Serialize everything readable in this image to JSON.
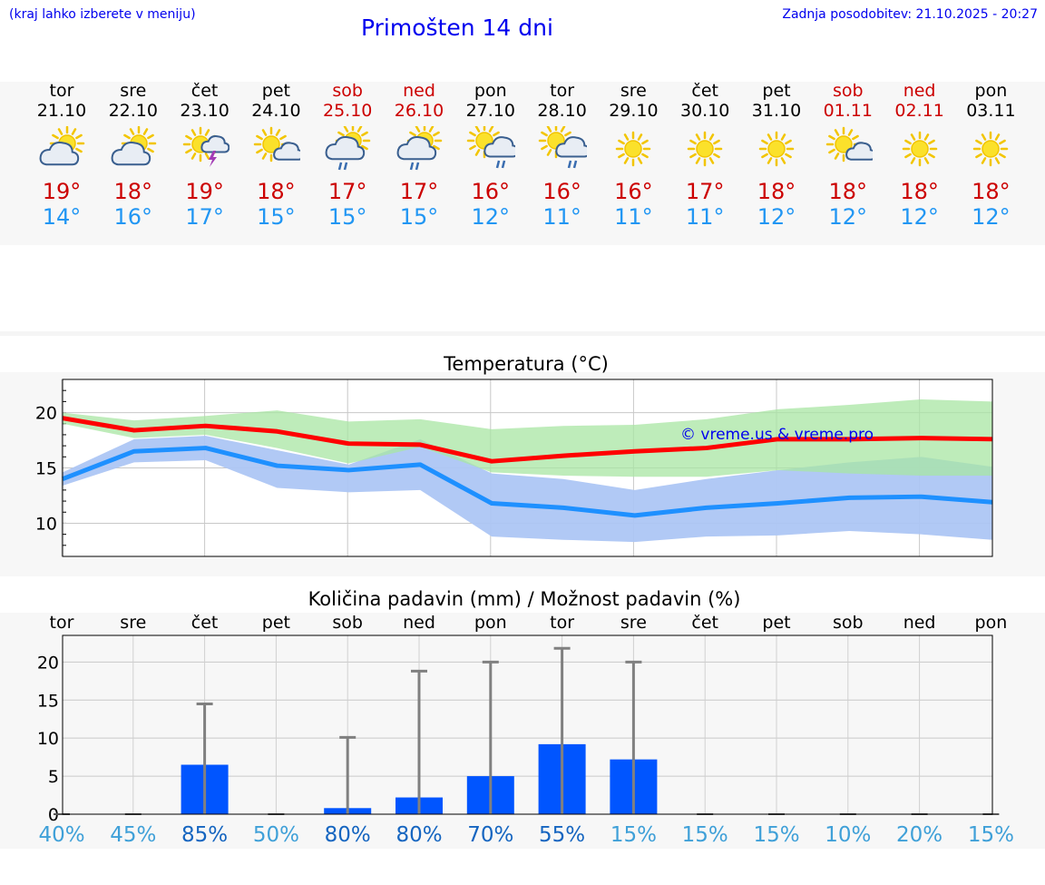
{
  "header": {
    "menu_hint": "(kraj lahko izberete v meniju)",
    "title": "Primošten 14 dni",
    "updated": "Zadnja posodobitev: 21.10.2025 - 20:27"
  },
  "colors": {
    "max_temp_line": "#ff0000",
    "min_temp_line": "#1e90ff",
    "max_band": "#a8e6a3",
    "min_band": "#adc6f4",
    "precip_bar": "#0055ff",
    "whisker": "#808080",
    "weekend_text": "#cc0000",
    "title_blue": "#0000ee"
  },
  "forecast": [
    {
      "day": "tor",
      "date": "21.10",
      "weekend": false,
      "icon": "partly-cloudy-icon",
      "max": "19°",
      "min": "14°"
    },
    {
      "day": "sre",
      "date": "22.10",
      "weekend": false,
      "icon": "partly-cloudy-icon",
      "max": "18°",
      "min": "16°"
    },
    {
      "day": "čet",
      "date": "23.10",
      "weekend": false,
      "icon": "sun-thunderstorm-icon",
      "max": "19°",
      "min": "17°"
    },
    {
      "day": "pet",
      "date": "24.10",
      "weekend": false,
      "icon": "sun-small-cloud-icon",
      "max": "18°",
      "min": "15°"
    },
    {
      "day": "sob",
      "date": "25.10",
      "weekend": true,
      "icon": "sun-cloud-rain-icon",
      "max": "17°",
      "min": "15°"
    },
    {
      "day": "ned",
      "date": "26.10",
      "weekend": true,
      "icon": "sun-cloud-rain-icon",
      "max": "17°",
      "min": "15°"
    },
    {
      "day": "pon",
      "date": "27.10",
      "weekend": false,
      "icon": "sun-cloud-light-rain-icon",
      "max": "16°",
      "min": "12°"
    },
    {
      "day": "tor",
      "date": "28.10",
      "weekend": false,
      "icon": "sun-cloud-light-rain-icon",
      "max": "16°",
      "min": "11°"
    },
    {
      "day": "sre",
      "date": "29.10",
      "weekend": false,
      "icon": "sun-icon",
      "max": "16°",
      "min": "11°"
    },
    {
      "day": "čet",
      "date": "30.10",
      "weekend": false,
      "icon": "sun-icon",
      "max": "17°",
      "min": "11°"
    },
    {
      "day": "pet",
      "date": "31.10",
      "weekend": false,
      "icon": "sun-icon",
      "max": "18°",
      "min": "12°"
    },
    {
      "day": "sob",
      "date": "01.11",
      "weekend": true,
      "icon": "sun-small-cloud-icon",
      "max": "18°",
      "min": "12°"
    },
    {
      "day": "ned",
      "date": "02.11",
      "weekend": true,
      "icon": "sun-icon",
      "max": "18°",
      "min": "12°"
    },
    {
      "day": "pon",
      "date": "03.11",
      "weekend": false,
      "icon": "sun-icon",
      "max": "18°",
      "min": "12°"
    }
  ],
  "chart_data": [
    {
      "type": "line",
      "title": "Temperatura (°C)",
      "watermark": "© vreme.us & vreme.pro",
      "ylim": [
        7,
        23
      ],
      "yticks": [
        10,
        15,
        20
      ],
      "grid": true,
      "series": [
        {
          "values": [
            19.5,
            18.4,
            18.8,
            18.3,
            17.2,
            17.1,
            15.6,
            16.1,
            16.5,
            16.8,
            17.6,
            17.6,
            17.7,
            17.6
          ],
          "band_low": [
            19.0,
            17.7,
            18.0,
            16.8,
            15.4,
            16.9,
            14.6,
            14.3,
            14.2,
            14.2,
            14.8,
            14.5,
            14.3,
            14.3
          ],
          "band_high": [
            20.0,
            19.3,
            19.7,
            20.2,
            19.2,
            19.4,
            18.5,
            18.8,
            18.9,
            19.4,
            20.3,
            20.7,
            21.2,
            21.0
          ]
        },
        {
          "values": [
            14.0,
            16.5,
            16.8,
            15.2,
            14.8,
            15.3,
            11.8,
            11.4,
            10.7,
            11.4,
            11.8,
            12.3,
            12.4,
            11.9
          ],
          "band_low": [
            13.4,
            15.5,
            15.7,
            13.2,
            12.8,
            13.0,
            8.8,
            8.5,
            8.3,
            8.8,
            8.9,
            9.3,
            9.0,
            8.5
          ],
          "band_high": [
            14.6,
            17.6,
            17.9,
            16.6,
            15.3,
            17.6,
            14.5,
            14.0,
            13.0,
            14.0,
            14.8,
            15.5,
            16.0,
            15.1
          ]
        }
      ]
    },
    {
      "type": "bar",
      "title": "Količina padavin (mm) / Možnost padavin (%)",
      "categories": [
        "tor",
        "sre",
        "čet",
        "pet",
        "sob",
        "ned",
        "pon",
        "tor",
        "sre",
        "čet",
        "pet",
        "sob",
        "ned",
        "pon"
      ],
      "values": [
        0,
        0,
        6.5,
        0,
        0.8,
        2.2,
        5.0,
        9.2,
        7.2,
        0,
        0,
        0,
        0,
        0
      ],
      "max_values": [
        0,
        0,
        14.5,
        0,
        10.1,
        18.8,
        20.0,
        21.8,
        20.0,
        0,
        0,
        0,
        0,
        0
      ],
      "probability": [
        "40%",
        "45%",
        "85%",
        "50%",
        "80%",
        "80%",
        "70%",
        "55%",
        "15%",
        "15%",
        "15%",
        "10%",
        "20%",
        "15%"
      ],
      "yticks": [
        0,
        5,
        10,
        15,
        20
      ],
      "ylim": [
        0,
        23.5
      ],
      "grid": true
    }
  ]
}
